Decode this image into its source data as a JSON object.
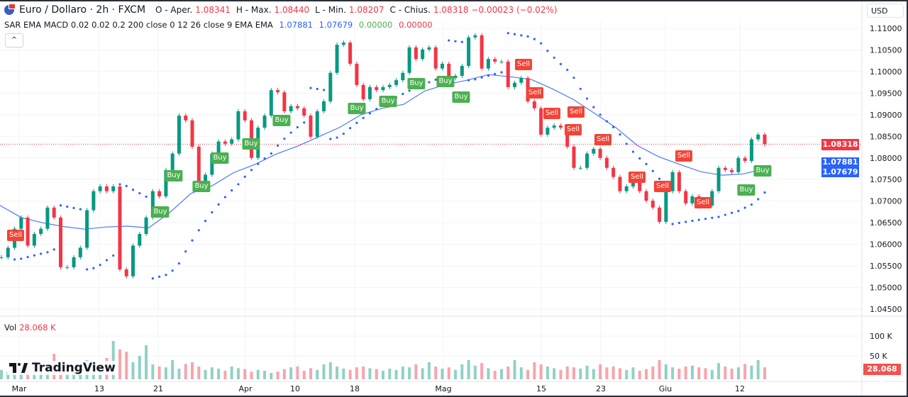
{
  "header": {
    "symbol": "Euro / Dollaro · 2h · FXCM",
    "open_label": "O - Aper.",
    "open": "1.08341",
    "high_label": "H - Max.",
    "high": "1.08440",
    "low_label": "L - Min.",
    "low": "1.08207",
    "close_label": "C - Chius.",
    "close": "1.08318",
    "change": "−0.00023 (−0.02%)",
    "flag_icon": "eu-us-flag-icon"
  },
  "indicators": {
    "label": "SAR EMA MACD 0.02 0.02 0.2 200 close 0 12 26 close 9 EMA EMA",
    "v1": "1.07881",
    "v2": "1.07679",
    "v3": "0.00000",
    "v4": "0.00000"
  },
  "collapse_icon": "^",
  "currency": "USD",
  "volume": {
    "label": "Vol",
    "value": "28.068 K",
    "axis_ticks": [
      "100 K",
      "50 K"
    ],
    "current_tag": "28.068 K"
  },
  "price_tags": {
    "last": "1.08318",
    "ema1": "1.07881",
    "ema2": "1.07679"
  },
  "branding": "TradingView",
  "colors": {
    "up": "#089981",
    "down": "#f23645",
    "ema": "#2962ff",
    "sar": "#2962ff",
    "buy": "#4caf50",
    "sell": "#f44336"
  },
  "chart_data": {
    "type": "candlestick",
    "ylim": [
      1.043,
      1.1125
    ],
    "y_ticks": [
      "1.11000",
      "1.10500",
      "1.10000",
      "1.09500",
      "1.09000",
      "1.08500",
      "1.08000",
      "1.07500",
      "1.07000",
      "1.06500",
      "1.06000",
      "1.05500",
      "1.05000",
      "1.04500"
    ],
    "x_ticks": [
      "Mar",
      "13",
      "21",
      "Apr",
      "10",
      "18",
      "Mag",
      "15",
      "23",
      "Giu",
      "12"
    ],
    "last_price": 1.08318,
    "close": [
      1.057,
      1.0592,
      1.0636,
      1.0662,
      1.0597,
      1.0624,
      1.0636,
      1.0685,
      1.0662,
      1.0547,
      1.0547,
      1.057,
      1.0592,
      1.0679,
      1.0723,
      1.0734,
      1.0723,
      1.0734,
      1.0542,
      1.0526,
      1.0597,
      1.0624,
      1.0662,
      1.0723,
      1.0711,
      1.0772,
      1.081,
      1.0898,
      1.0887,
      1.0826,
      1.0744,
      1.0761,
      1.081,
      1.0838,
      1.0833,
      1.0843,
      1.0908,
      1.0887,
      1.08,
      1.087,
      1.0898,
      1.0957,
      1.0952,
      1.0908,
      1.092,
      1.0915,
      1.0898,
      1.0849,
      1.0908,
      1.0931,
      1.0997,
      1.1062,
      1.1067,
      1.1018,
      1.0969,
      1.0936,
      1.0964,
      1.0957,
      1.0964,
      1.0969,
      1.098,
      1.0997,
      1.1056,
      1.1029,
      1.1051,
      1.1056,
      1.1007,
      1.1018,
      1.0985,
      1.099,
      1.1013,
      1.1079,
      1.1084,
      1.1007,
      1.1029,
      1.1023,
      1.1023,
      1.0964,
      1.0974,
      1.0985,
      1.0931,
      1.0915,
      1.0854,
      1.087,
      1.0875,
      1.087,
      1.0826,
      1.0777,
      1.0777,
      1.081,
      1.0821,
      1.08,
      1.0777,
      1.0756,
      1.0723,
      1.0734,
      1.0744,
      1.0723,
      1.0701,
      1.0685,
      1.0652,
      1.0723,
      1.0767,
      1.0723,
      1.0695,
      1.0711,
      1.0695,
      1.069,
      1.0723,
      1.0777,
      1.0772,
      1.0767,
      1.08,
      1.0793,
      1.0843,
      1.0854,
      1.0832
    ],
    "ema200": [
      1.069,
      1.0662,
      1.065,
      1.0641,
      1.0635,
      1.064,
      1.0642,
      1.0638,
      1.0674,
      1.0718,
      1.0736,
      1.0766,
      1.0785,
      1.0809,
      1.0827,
      1.0849,
      1.0871,
      1.09,
      1.0915,
      1.0924,
      1.0955,
      1.097,
      1.098,
      1.0993,
      1.0988,
      1.0982,
      1.096,
      1.0935,
      1.0903,
      1.087,
      1.0829,
      1.0803,
      1.0785,
      1.0768,
      1.076,
      1.0763,
      1.0775
    ],
    "sar_params": [
      0.02,
      0.02,
      0.2
    ],
    "volume_k": [
      22,
      18,
      30,
      25,
      40,
      20,
      28,
      35,
      60,
      32,
      25,
      22,
      30,
      45,
      38,
      26,
      50,
      90,
      70,
      65,
      40,
      55,
      80,
      35,
      30,
      28,
      45,
      25,
      36,
      40,
      30,
      22,
      28,
      25,
      20,
      30,
      26,
      24,
      18,
      22,
      20,
      15,
      18,
      24,
      28,
      30,
      20,
      26,
      22,
      35,
      40,
      30,
      25,
      22,
      28,
      30,
      26,
      24,
      20,
      25,
      22,
      30,
      28,
      35,
      26,
      40,
      30,
      25,
      28,
      22,
      35,
      45,
      32,
      38,
      26,
      20,
      24,
      30,
      45,
      28,
      22,
      40,
      35,
      30,
      26,
      22,
      30,
      28,
      25,
      32,
      24,
      35,
      28,
      30,
      26,
      22,
      28,
      20,
      24,
      30,
      45,
      35,
      28,
      25,
      30,
      32,
      28,
      26,
      22,
      38,
      30,
      25,
      28,
      36,
      32,
      45,
      28.068
    ],
    "signals": [
      {
        "type": "sell",
        "label": "Sell"
      },
      {
        "type": "buy",
        "label": "Buy"
      },
      {
        "type": "buy",
        "label": "Buy"
      },
      {
        "type": "buy",
        "label": "Buy"
      },
      {
        "type": "buy",
        "label": "Buy"
      },
      {
        "type": "buy",
        "label": "Buy"
      },
      {
        "type": "buy",
        "label": "Buy"
      },
      {
        "type": "buy",
        "label": "Buy"
      },
      {
        "type": "buy",
        "label": "Buy"
      },
      {
        "type": "buy",
        "label": "Buy"
      },
      {
        "type": "buy",
        "label": "Buy"
      },
      {
        "type": "buy",
        "label": "Buy"
      },
      {
        "type": "sell",
        "label": "Sell"
      },
      {
        "type": "sell",
        "label": "Sell"
      },
      {
        "type": "sell",
        "label": "Sell"
      },
      {
        "type": "sell",
        "label": "Sell"
      },
      {
        "type": "sell",
        "label": "Sell"
      },
      {
        "type": "sell",
        "label": "Sell"
      },
      {
        "type": "sell",
        "label": "Sell"
      },
      {
        "type": "sell",
        "label": "Sell"
      },
      {
        "type": "sell",
        "label": "Sell"
      },
      {
        "type": "sell",
        "label": "Sell"
      },
      {
        "type": "buy",
        "label": "Buy"
      },
      {
        "type": "buy",
        "label": "Buy"
      }
    ]
  }
}
